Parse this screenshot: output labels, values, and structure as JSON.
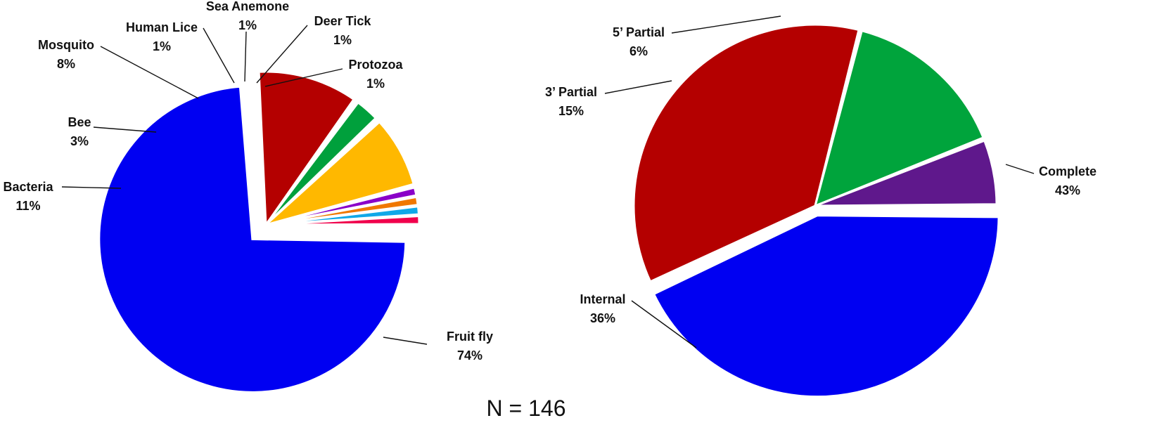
{
  "chart_data": [
    {
      "type": "pie",
      "title": "",
      "slices": [
        {
          "label": "Fruit fly",
          "value": 74,
          "value_label": "74%",
          "color": "#0000f2"
        },
        {
          "label": "Bacteria",
          "value": 11,
          "value_label": "11%",
          "color": "#b40000"
        },
        {
          "label": "Bee",
          "value": 3,
          "value_label": "3%",
          "color": "#00a03c"
        },
        {
          "label": "Mosquito",
          "value": 8,
          "value_label": "8%",
          "color": "#ffb800"
        },
        {
          "label": "Human Lice",
          "value": 1,
          "value_label": "1%",
          "color": "#8a00c8"
        },
        {
          "label": "Sea Anemone",
          "value": 1,
          "value_label": "1%",
          "color": "#f07800"
        },
        {
          "label": "Deer Tick",
          "value": 1,
          "value_label": "1%",
          "color": "#10a8e8"
        },
        {
          "label": "Protozoa",
          "value": 1,
          "value_label": "1%",
          "color": "#f0004c"
        }
      ],
      "exploded": "Fruit fly"
    },
    {
      "type": "pie",
      "title": "",
      "slices": [
        {
          "label": "Complete",
          "value": 43,
          "value_label": "43%",
          "color": "#0000f2"
        },
        {
          "label": "Internal",
          "value": 36,
          "value_label": "36%",
          "color": "#b40000"
        },
        {
          "label": "3’ Partial",
          "value": 15,
          "value_label": "15%",
          "color": "#00a43c"
        },
        {
          "label": "5’ Partial",
          "value": 6,
          "value_label": "6%",
          "color": "#5f188c"
        }
      ],
      "exploded": "Complete"
    }
  ],
  "footnote": "N = 146"
}
